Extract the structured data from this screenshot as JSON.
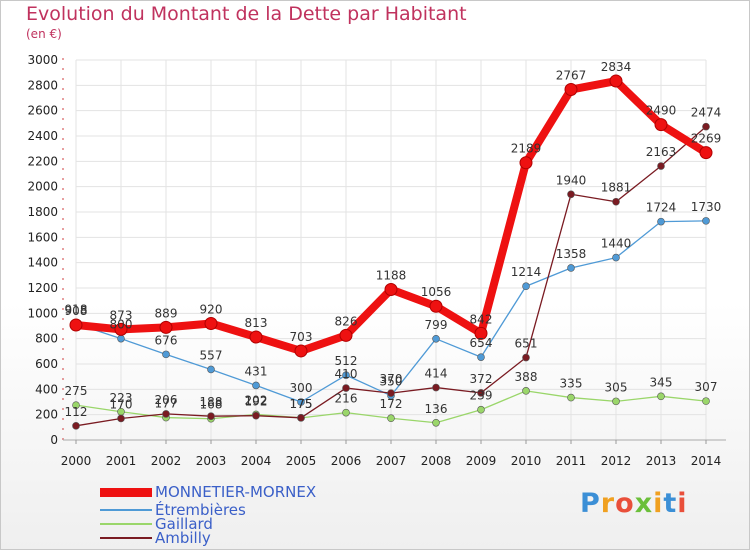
{
  "header": {
    "title": "Evolution du Montant de la Dette par Habitant",
    "unit": "(en €)"
  },
  "brand": {
    "text": "Proxiti",
    "letters": [
      "P",
      "r",
      "o",
      "x",
      "i",
      "t",
      "i"
    ],
    "letter_colors": [
      "#3b8fd6",
      "#f0a020",
      "#e94f3a",
      "#6bbf3a",
      "#f0a020",
      "#3b8fd6",
      "#e94f3a"
    ]
  },
  "chart_data": {
    "type": "line",
    "title": "Evolution du Montant de la Dette par Habitant",
    "subtitle": "(en €)",
    "x": [
      2000,
      2001,
      2002,
      2003,
      2004,
      2005,
      2006,
      2007,
      2008,
      2009,
      2010,
      2011,
      2012,
      2013,
      2014
    ],
    "ylim": [
      0,
      3000
    ],
    "yticks": [
      0,
      200,
      400,
      600,
      800,
      1000,
      1200,
      1400,
      1600,
      1800,
      2000,
      2200,
      2400,
      2600,
      2800,
      3000
    ],
    "grid": true,
    "legend_position": "bottom-left",
    "series": [
      {
        "name": "MONNETIER-MORNEX",
        "color": "#ee1111",
        "values": [
          908,
          873,
          889,
          920,
          813,
          703,
          826,
          1188,
          1056,
          842,
          2189,
          2767,
          2834,
          2490,
          2269
        ]
      },
      {
        "name": "Étrembières",
        "color": "#4f9ad6",
        "values": [
          918,
          800,
          676,
          557,
          431,
          300,
          512,
          350,
          799,
          654,
          1214,
          1358,
          1440,
          1724,
          1730
        ]
      },
      {
        "name": "Gaillard",
        "color": "#9ad66a",
        "values": [
          275,
          223,
          177,
          168,
          202,
          175,
          216,
          172,
          136,
          239,
          388,
          335,
          305,
          345,
          307
        ]
      },
      {
        "name": "Ambilly",
        "color": "#7a1b22",
        "values": [
          112,
          170,
          206,
          188,
          192,
          175,
          410,
          370,
          414,
          372,
          651,
          1940,
          1881,
          2163,
          2474
        ]
      }
    ]
  }
}
